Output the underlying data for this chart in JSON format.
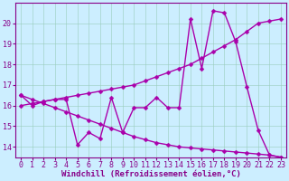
{
  "x": [
    0,
    1,
    2,
    3,
    4,
    5,
    6,
    7,
    8,
    9,
    10,
    11,
    12,
    13,
    14,
    15,
    16,
    17,
    18,
    19,
    20,
    21,
    22,
    23
  ],
  "line1_y": [
    16.5,
    16.0,
    16.2,
    16.3,
    16.3,
    14.1,
    14.7,
    14.4,
    16.4,
    14.7,
    15.9,
    15.9,
    16.4,
    15.9,
    15.9,
    20.2,
    17.8,
    20.6,
    20.5,
    19.1,
    16.9,
    14.8,
    13.6,
    13.5
  ],
  "line2_y": [
    16.0,
    16.1,
    16.2,
    16.3,
    16.4,
    16.5,
    16.6,
    16.7,
    16.8,
    16.9,
    17.0,
    17.2,
    17.4,
    17.6,
    17.8,
    18.0,
    18.3,
    18.6,
    18.9,
    19.2,
    19.6,
    20.0,
    20.1,
    20.2
  ],
  "line3_y": [
    16.5,
    16.3,
    16.1,
    15.9,
    15.7,
    15.5,
    15.3,
    15.1,
    14.9,
    14.7,
    14.5,
    14.35,
    14.2,
    14.1,
    14.0,
    13.95,
    13.9,
    13.85,
    13.8,
    13.75,
    13.7,
    13.65,
    13.6,
    13.5
  ],
  "bg_color": "#cceeff",
  "line_color": "#aa00aa",
  "grid_color": "#99ccbb",
  "xlabel": "Windchill (Refroidissement éolien,°C)",
  "xlim": [
    -0.5,
    23.5
  ],
  "ylim": [
    13.5,
    21.0
  ],
  "yticks": [
    14,
    15,
    16,
    17,
    18,
    19,
    20
  ],
  "xticks": [
    0,
    1,
    2,
    3,
    4,
    5,
    6,
    7,
    8,
    9,
    10,
    11,
    12,
    13,
    14,
    15,
    16,
    17,
    18,
    19,
    20,
    21,
    22,
    23
  ],
  "marker": "D",
  "markersize": 2.5,
  "linewidth": 1.0,
  "xlabel_fontsize": 6.5,
  "tick_fontsize": 6.0,
  "tick_color": "#880088",
  "axis_color": "#880088",
  "figsize": [
    3.2,
    2.0
  ],
  "dpi": 100
}
